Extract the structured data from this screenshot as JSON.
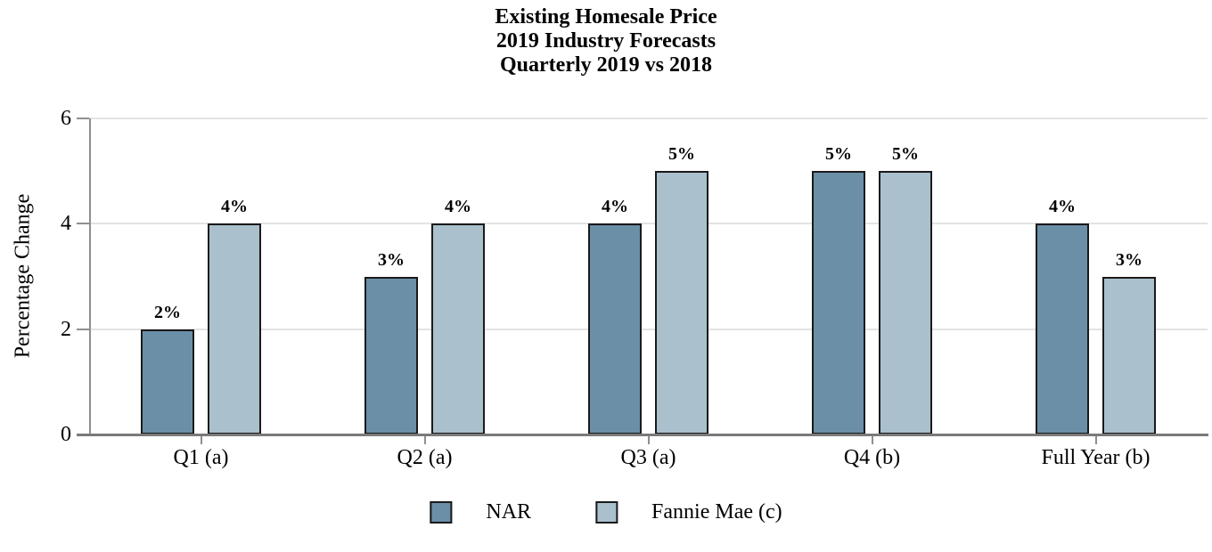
{
  "title": {
    "line1": "Existing Homesale Price",
    "line2": "2019 Industry Forecasts",
    "line3": "Quarterly 2019 vs 2018"
  },
  "chart_data": {
    "type": "bar",
    "title": "Existing Homesale Price 2019 Industry Forecasts Quarterly 2019 vs 2018",
    "categories": [
      "Q1 (a)",
      "Q2 (a)",
      "Q3 (a)",
      "Q4 (b)",
      "Full Year (b)"
    ],
    "series": [
      {
        "name": "NAR",
        "color": "#6a8fa7",
        "values": [
          2,
          3,
          4,
          5,
          4
        ],
        "data_labels": [
          "2%",
          "3%",
          "4%",
          "5%",
          "4%"
        ]
      },
      {
        "name": "Fannie Mae (c)",
        "color": "#aac0cd",
        "values": [
          4,
          4,
          5,
          5,
          3
        ],
        "data_labels": [
          "4%",
          "4%",
          "5%",
          "5%",
          "3%"
        ]
      }
    ],
    "xlabel": "",
    "ylabel": "Percentage Change",
    "ylim": [
      0,
      6
    ],
    "yticks": [
      0,
      2,
      4,
      6
    ],
    "grid": "horizontal",
    "legend_position": "bottom-center"
  },
  "colors": {
    "background": "#ffffff",
    "nar_bar": "#6a8fa7",
    "fannie_bar": "#aac0cd",
    "bar_border": "#1a1a1a",
    "axis_line": "#8f8f8f",
    "baseline": "#7a7a7a",
    "gridline": "#e3e3e3",
    "text": "#000000"
  }
}
